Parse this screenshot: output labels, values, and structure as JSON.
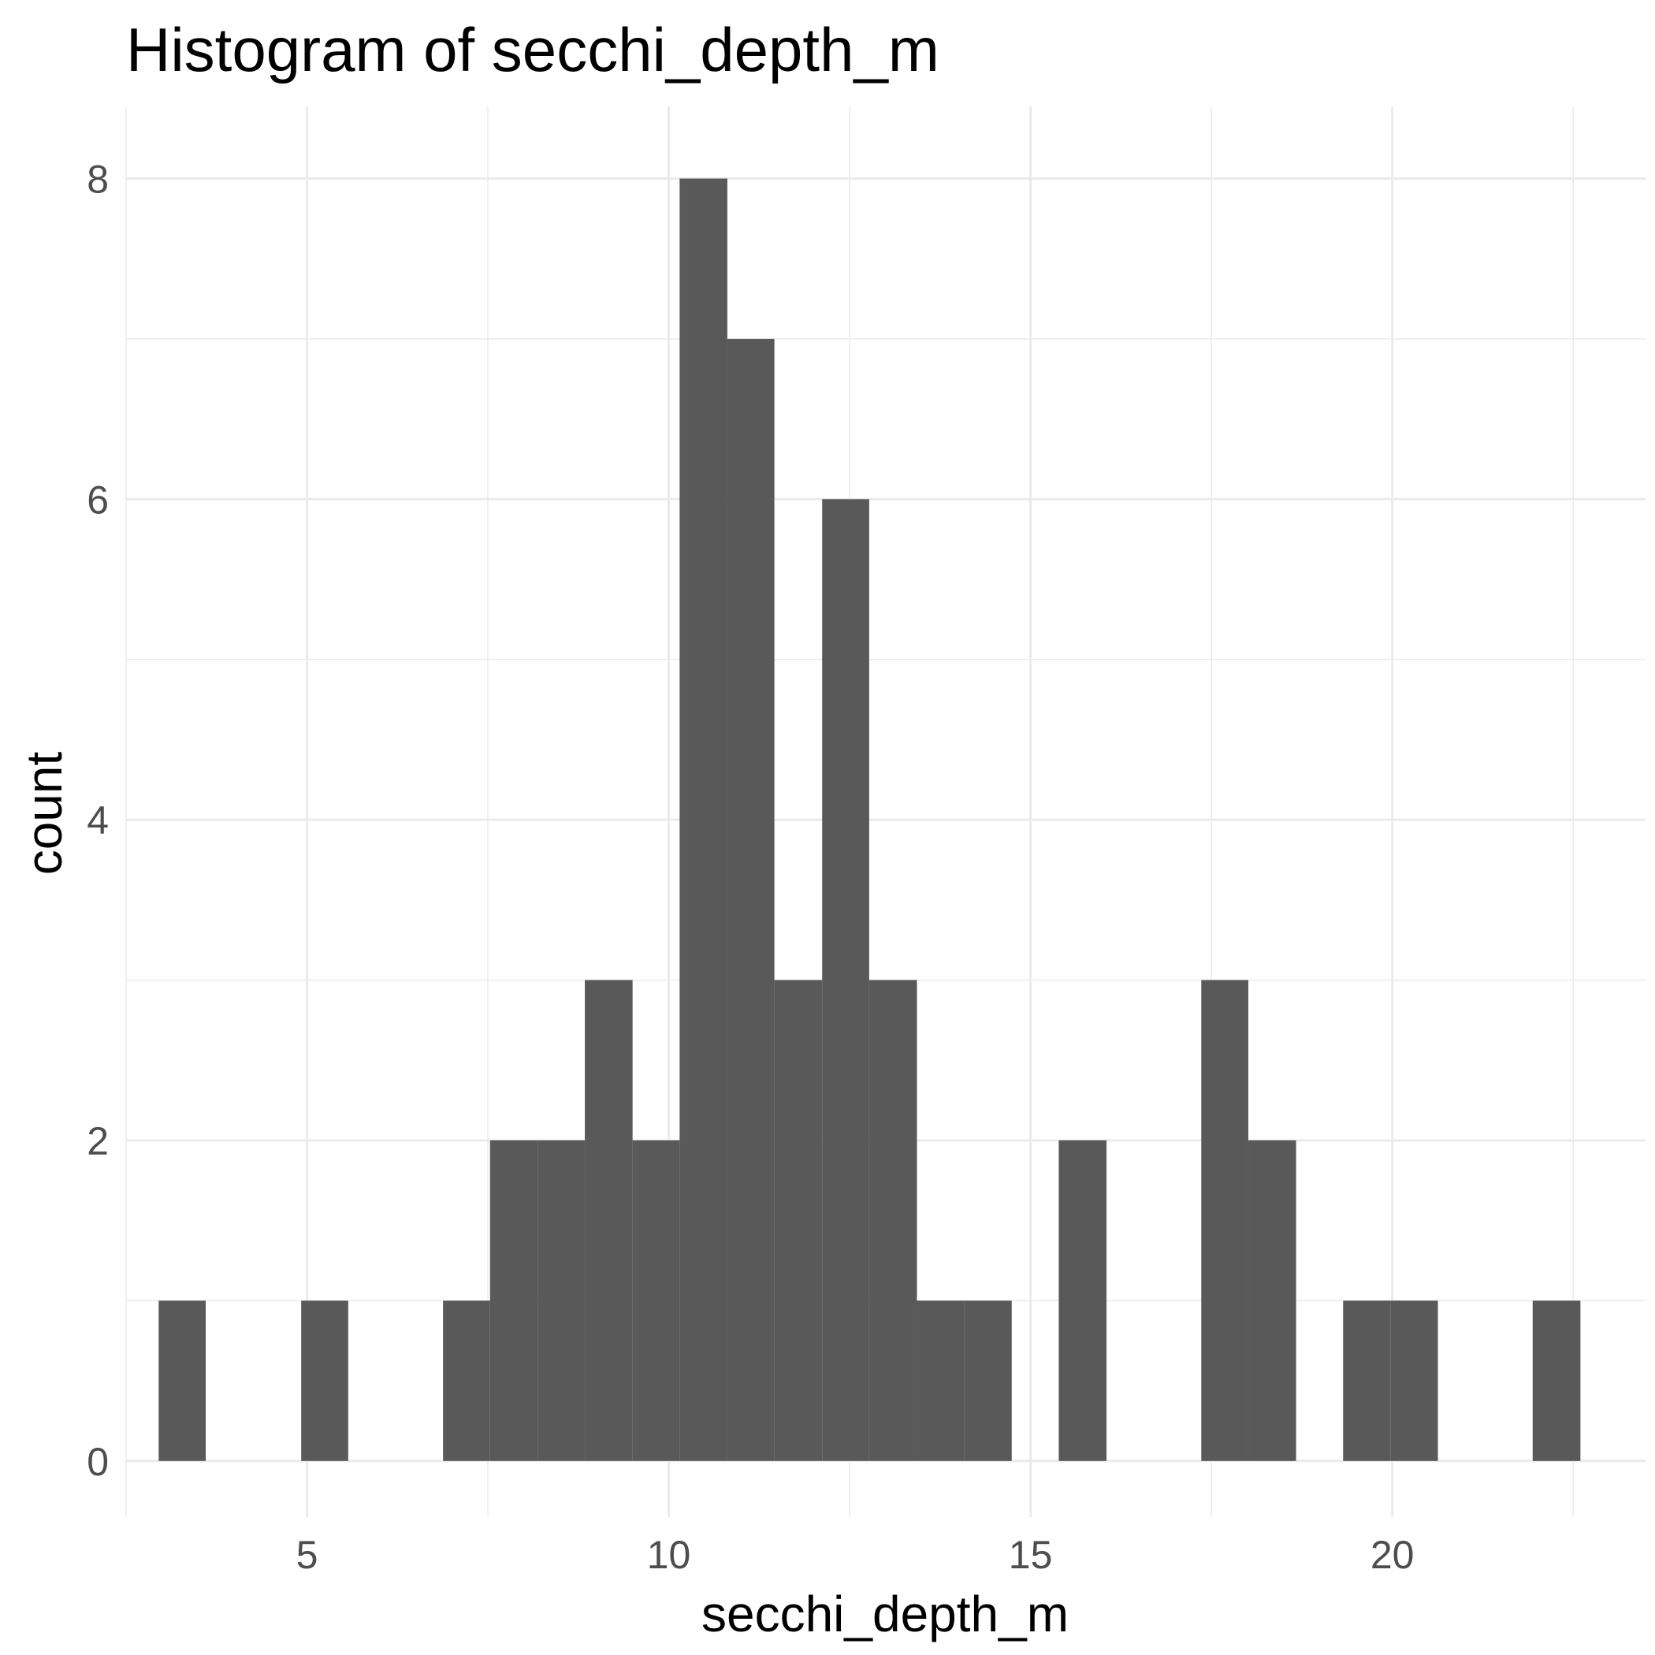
{
  "chart_data": {
    "type": "bar",
    "title": "Histogram of  secchi_depth_m",
    "xlabel": "secchi_depth_m",
    "ylabel": "count",
    "xlim": [
      2.5,
      23.5
    ],
    "ylim": [
      -0.35,
      8.45
    ],
    "x_ticks": [
      5,
      10,
      15,
      20
    ],
    "y_ticks": [
      0,
      2,
      4,
      6,
      8
    ],
    "grid": true,
    "bar_color": "#595959",
    "bins": [
      {
        "x0": 2.95,
        "x1": 3.6,
        "count": 1
      },
      {
        "x0": 4.92,
        "x1": 5.57,
        "count": 1
      },
      {
        "x0": 6.88,
        "x1": 7.53,
        "count": 1
      },
      {
        "x0": 7.53,
        "x1": 8.19,
        "count": 2
      },
      {
        "x0": 8.19,
        "x1": 8.84,
        "count": 2
      },
      {
        "x0": 8.84,
        "x1": 9.5,
        "count": 3
      },
      {
        "x0": 9.5,
        "x1": 10.15,
        "count": 2
      },
      {
        "x0": 10.15,
        "x1": 10.81,
        "count": 8
      },
      {
        "x0": 10.81,
        "x1": 11.46,
        "count": 7
      },
      {
        "x0": 11.46,
        "x1": 12.12,
        "count": 3
      },
      {
        "x0": 12.12,
        "x1": 12.77,
        "count": 6
      },
      {
        "x0": 12.77,
        "x1": 13.43,
        "count": 3
      },
      {
        "x0": 13.43,
        "x1": 14.08,
        "count": 1
      },
      {
        "x0": 14.08,
        "x1": 14.74,
        "count": 1
      },
      {
        "x0": 15.39,
        "x1": 16.05,
        "count": 2
      },
      {
        "x0": 17.36,
        "x1": 18.01,
        "count": 3
      },
      {
        "x0": 18.01,
        "x1": 18.67,
        "count": 2
      },
      {
        "x0": 19.32,
        "x1": 19.98,
        "count": 1
      },
      {
        "x0": 19.98,
        "x1": 20.63,
        "count": 1
      },
      {
        "x0": 21.94,
        "x1": 22.6,
        "count": 1
      }
    ]
  }
}
